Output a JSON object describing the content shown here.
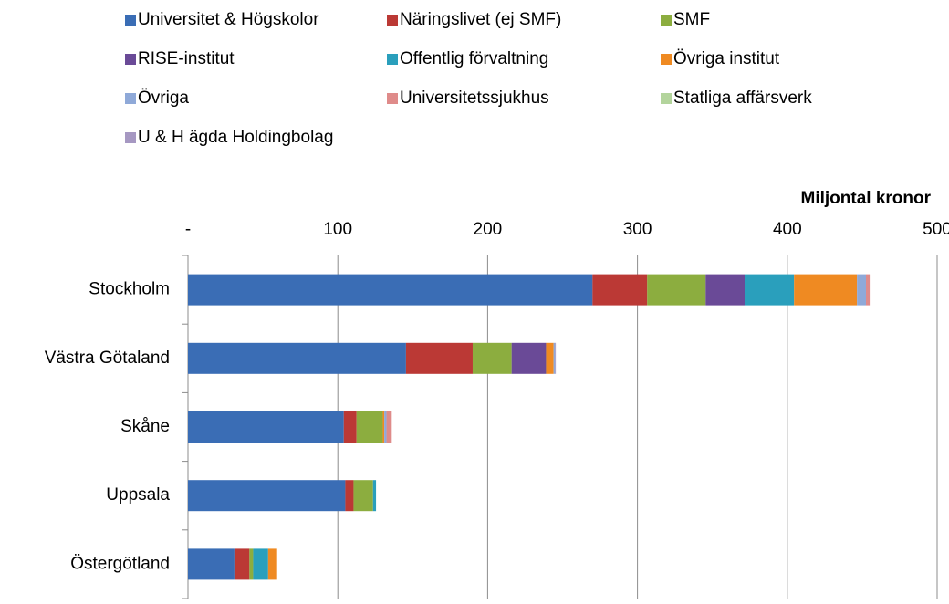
{
  "chart_data": {
    "type": "stacked_barh",
    "x_label": "Miljontal kronor",
    "categories": [
      "Stockholm",
      "Västra Götaland",
      "Skåne",
      "Uppsala",
      "Östergötland"
    ],
    "series": [
      {
        "name": "Universitet & Högskolor",
        "color": "#3a6db5",
        "values": [
          270,
          145.5,
          104,
          105,
          31
        ]
      },
      {
        "name": "Näringslivet (ej SMF)",
        "color": "#bb3935",
        "values": [
          36.5,
          44.5,
          8.5,
          5.5,
          10
        ]
      },
      {
        "name": "SMF",
        "color": "#8cad3f",
        "values": [
          39,
          26,
          17.5,
          13,
          2.5
        ]
      },
      {
        "name": "RISE-institut",
        "color": "#6a4a97",
        "values": [
          26,
          23,
          0,
          0,
          0
        ]
      },
      {
        "name": "Offentlig förvaltning",
        "color": "#2a9fbc",
        "values": [
          33,
          0,
          0,
          2,
          10
        ]
      },
      {
        "name": "Övriga institut",
        "color": "#ef8a22",
        "values": [
          42,
          5,
          1,
          0,
          6
        ]
      },
      {
        "name": "Övriga",
        "color": "#8fa9d8",
        "values": [
          6,
          1,
          1.5,
          0,
          0
        ]
      },
      {
        "name": "Universitetssjukhus",
        "color": "#df8b8a",
        "values": [
          2.5,
          0,
          3.5,
          0,
          0
        ]
      },
      {
        "name": "Statliga affärsverk",
        "color": "#b3d49c",
        "values": [
          0,
          0,
          0,
          0,
          0
        ]
      },
      {
        "name": "U & H ägda Holdingbolag",
        "color": "#a698c2",
        "values": [
          0,
          0.5,
          0,
          0,
          0
        ]
      }
    ],
    "xlim": [
      0,
      500
    ],
    "xticks": [
      {
        "value": 0,
        "label": "-"
      },
      100,
      200,
      300,
      400,
      500
    ],
    "grid": true,
    "legend": "top"
  }
}
